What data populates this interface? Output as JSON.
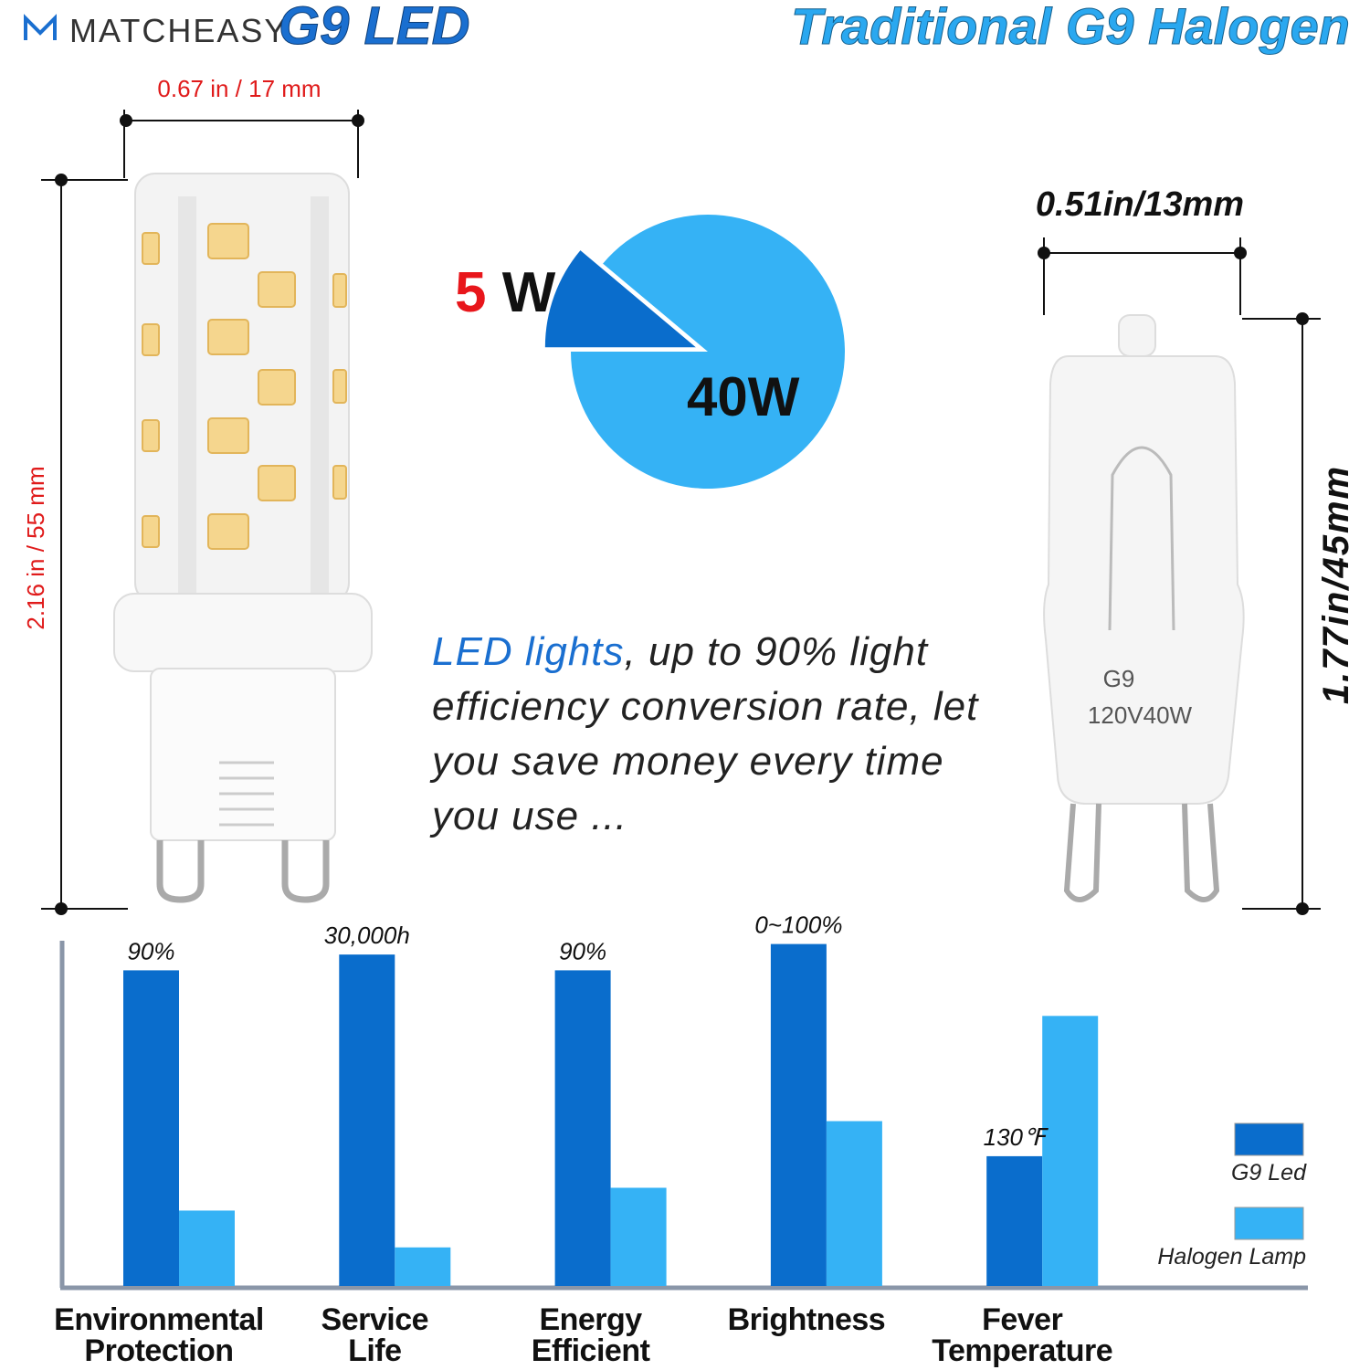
{
  "header": {
    "brand": "MATCHEASY",
    "led_title": "G9 LED",
    "halogen_title": "Traditional G9 Halogen"
  },
  "dimensions": {
    "led_width": "0.67 in / 17 mm",
    "led_height": "2.16 in / 55 mm",
    "halogen_width": "0.51in/13mm",
    "halogen_height": "1.77in/45mm"
  },
  "halogen_markings": [
    "G9",
    "120V40W"
  ],
  "paragraph": {
    "highlight": "LED lights",
    "text": ", up to 90% light efficiency conversion rate, let you save money every time you use ..."
  },
  "chart_data": [
    {
      "type": "pie",
      "values": [
        5,
        40
      ],
      "value_labels": [
        "5 W",
        "40W"
      ],
      "colors": [
        "#0a6dcc",
        "#35b2f5"
      ]
    },
    {
      "type": "bar",
      "categories": [
        "Environmental Protection",
        "Service Life",
        "Energy Efficient",
        "Brightness",
        "Fever Temperature"
      ],
      "series": [
        {
          "name": "G9 Led",
          "color": "#0a6dcc",
          "values": [
            90,
            94.5,
            90,
            97.5,
            37
          ]
        },
        {
          "name": "Halogen Lamp",
          "color": "#35b2f5",
          "values": [
            21.5,
            11,
            28,
            47,
            77
          ]
        }
      ],
      "annotations": [
        "90%",
        "30,000h",
        "90%",
        "0~100%",
        "130℉"
      ],
      "ylim": [
        0,
        100
      ],
      "legend": "right"
    }
  ]
}
